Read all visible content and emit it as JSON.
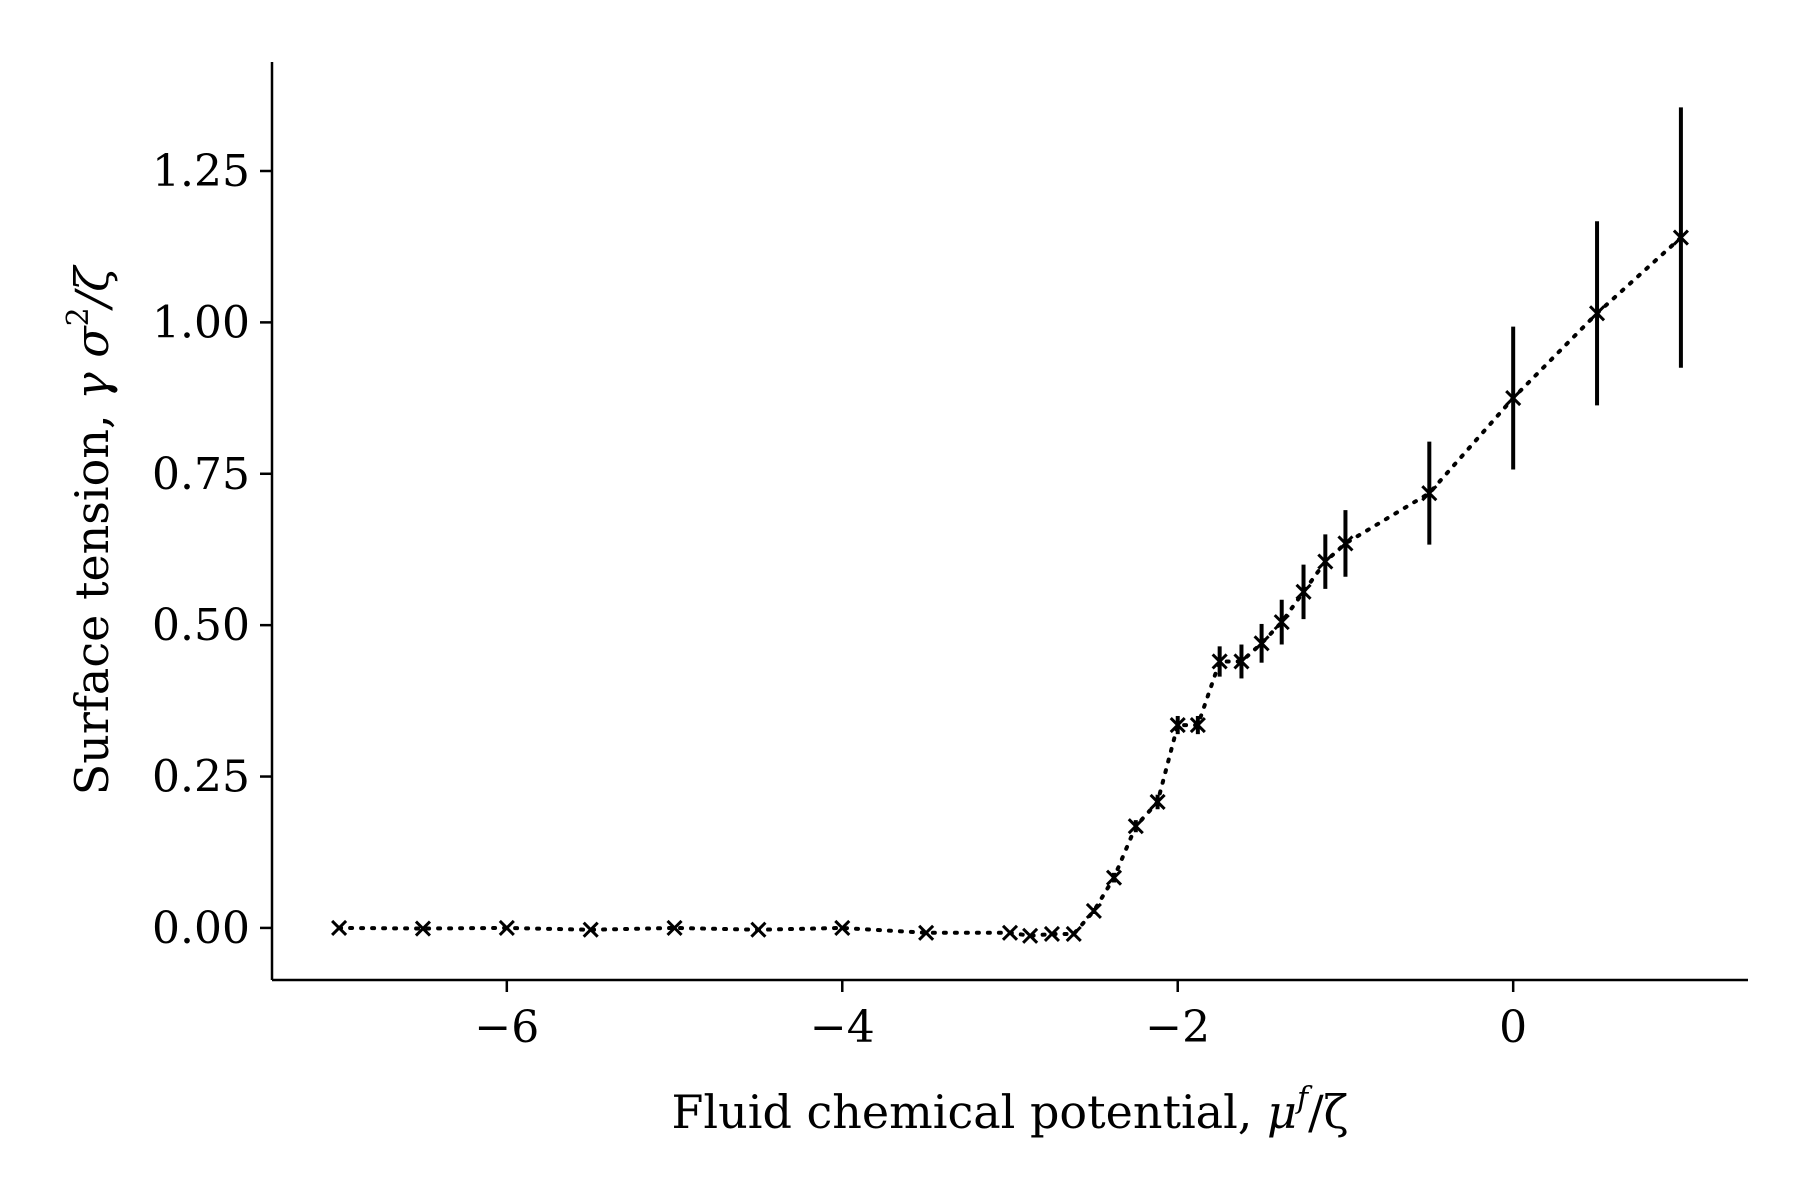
{
  "chart_data": {
    "type": "scatter",
    "title": "",
    "xlabel": "Fluid chemical potential, ",
    "xlabel_math": "μ",
    "xlabel_sup": "f",
    "xlabel_tail": "/ζ",
    "ylabel": "Surface tension, ",
    "ylabel_math": "γ σ",
    "ylabel_sup": "2",
    "ylabel_tail": "/ζ",
    "xlim": [
      -7.4,
      1.4
    ],
    "ylim": [
      -0.086,
      1.43
    ],
    "xticks": [
      -6,
      -4,
      -2,
      0
    ],
    "xtick_labels": [
      "−6",
      "−4",
      "−2",
      "0"
    ],
    "yticks": [
      0.0,
      0.25,
      0.5,
      0.75,
      1.0,
      1.25
    ],
    "ytick_labels": [
      "0.00",
      "0.25",
      "0.50",
      "0.75",
      "1.00",
      "1.25"
    ],
    "grid": false,
    "legend": "none",
    "marker": "x",
    "line_style": "dotted",
    "color": "#000000",
    "series": [
      {
        "x": [
          -7.0,
          -6.5,
          -6.0,
          -5.5,
          -5.0,
          -4.5,
          -4.0,
          -3.5,
          -3.0,
          -2.88,
          -2.75,
          -2.62,
          -2.5,
          -2.38,
          -2.25,
          -2.12,
          -2.0,
          -1.88,
          -1.75,
          -1.62,
          -1.5,
          -1.38,
          -1.25,
          -1.12,
          -1.0,
          -0.5,
          0.0,
          0.5,
          1.0
        ],
        "y": [
          0.0,
          -0.001,
          0.0,
          -0.003,
          0.0,
          -0.003,
          0.0,
          -0.008,
          -0.008,
          -0.013,
          -0.01,
          -0.01,
          0.028,
          0.083,
          0.168,
          0.208,
          0.335,
          0.335,
          0.44,
          0.44,
          0.47,
          0.505,
          0.555,
          0.605,
          0.635,
          0.718,
          0.875,
          1.015,
          1.14
        ],
        "yerr": [
          0.002,
          0.002,
          0.002,
          0.002,
          0.002,
          0.002,
          0.002,
          0.003,
          0.003,
          0.003,
          0.003,
          0.004,
          0.005,
          0.008,
          0.01,
          0.012,
          0.015,
          0.015,
          0.025,
          0.028,
          0.032,
          0.037,
          0.045,
          0.045,
          0.055,
          0.085,
          0.118,
          0.152,
          0.215
        ]
      }
    ]
  }
}
